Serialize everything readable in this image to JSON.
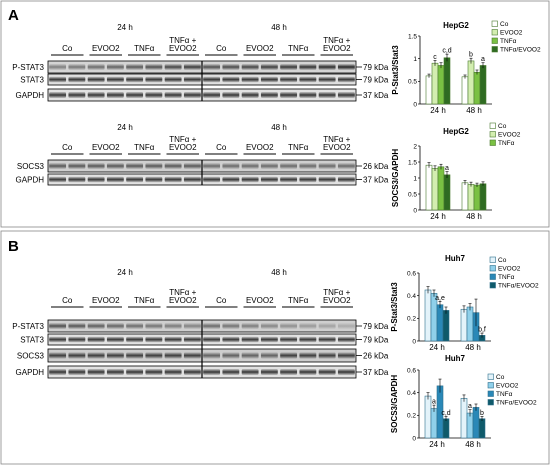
{
  "figure": {
    "panel_a": {
      "letter": "A",
      "blot1": {
        "time_left": "24 h",
        "time_right": "48 h",
        "groups": [
          "Co",
          "EVOO2",
          "TNFα",
          "TNFα +\nEVOO2",
          "Co",
          "EVOO2",
          "TNFα",
          "TNFα +\nEVOO2"
        ],
        "rows": [
          {
            "label": "P-STAT3",
            "kda": "79 kDa"
          },
          {
            "label": "STAT3",
            "kda": "79 kDa"
          },
          {
            "label": "GAPDH",
            "kda": "37 kDa"
          }
        ]
      },
      "blot2": {
        "time_left": "24 h",
        "time_right": "48 h",
        "groups": [
          "Co",
          "EVOO2",
          "TNFα",
          "TNFα +\nEVOO2",
          "Co",
          "EVOO2",
          "TNFα",
          "TNFα +\nEVOO2"
        ],
        "rows": [
          {
            "label": "SOCS3",
            "kda": "26 kDa"
          },
          {
            "label": "GAPDH",
            "kda": "37 kDa"
          }
        ]
      }
    },
    "panel_b": {
      "letter": "B",
      "blot": {
        "time_left": "24 h",
        "time_right": "48 h",
        "groups": [
          "Co",
          "EVOO2",
          "TNFα",
          "TNFα +\nEVOO2",
          "Co",
          "EVOO2",
          "TNFα",
          "TNFα +\nEVOO2"
        ],
        "rows": [
          {
            "label": "P-STAT3",
            "kda": "79 kDa"
          },
          {
            "label": "STAT3",
            "kda": "79 kDa"
          },
          {
            "label": "SOCS3",
            "kda": "26 kDa"
          },
          {
            "label": "GAPDH",
            "kda": "37 kDa"
          }
        ]
      }
    }
  },
  "chart_data": [
    {
      "type": "bar",
      "title": "HepG2",
      "ylabel": "P-Stat3/Stat3",
      "categories": [
        "24 h",
        "48 h"
      ],
      "ylim": [
        0,
        1.5
      ],
      "yticks": [
        "0",
        "0.5",
        "1",
        "1.5"
      ],
      "series": [
        {
          "name": "Co",
          "values": [
            0.62,
            0.6
          ],
          "errors": [
            0.04,
            0.04
          ],
          "color": "#ffffff"
        },
        {
          "name": "EVOO2",
          "values": [
            0.9,
            0.95
          ],
          "errors": [
            0.06,
            0.06
          ],
          "color": "#d3eeb0"
        },
        {
          "name": "TNFα",
          "values": [
            0.85,
            0.7
          ],
          "errors": [
            0.06,
            0.05
          ],
          "color": "#7ac143"
        },
        {
          "name": "TNFα/EVOO2",
          "values": [
            1.02,
            0.85
          ],
          "errors": [
            0.08,
            0.06
          ],
          "color": "#2f6b22"
        }
      ],
      "annotations": [
        {
          "category": 0,
          "series": 1,
          "text": "c"
        },
        {
          "category": 0,
          "series": 3,
          "text": "c,d"
        },
        {
          "category": 1,
          "series": 1,
          "text": "b"
        },
        {
          "category": 1,
          "series": 3,
          "text": "a"
        }
      ]
    },
    {
      "type": "bar",
      "title": "HepG2",
      "ylabel": "SOCS3/GAPDH",
      "categories": [
        "24 h",
        "48 h"
      ],
      "ylim": [
        0,
        2
      ],
      "yticks": [
        "0",
        "0.5",
        "1",
        "1.5",
        "2"
      ],
      "series": [
        {
          "name": "Co",
          "values": [
            1.4,
            0.85
          ],
          "errors": [
            0.08,
            0.07
          ],
          "color": "#ffffff"
        },
        {
          "name": "EVOO2",
          "values": [
            1.3,
            0.8
          ],
          "errors": [
            0.08,
            0.07
          ],
          "color": "#d3eeb0"
        },
        {
          "name": "TNFα",
          "values": [
            1.35,
            0.78
          ],
          "errors": [
            0.08,
            0.06
          ],
          "color": "#7ac143"
        },
        {
          "name": "",
          "values": [
            1.1,
            0.82
          ],
          "errors": [
            0.1,
            0.06
          ],
          "color": "#2f6b22"
        }
      ],
      "annotations": [
        {
          "category": 0,
          "series": 3,
          "text": "a"
        }
      ]
    },
    {
      "type": "bar",
      "title": "Huh7",
      "ylabel": "P-Stat3/Stat3",
      "categories": [
        "24 h",
        "48 h"
      ],
      "ylim": [
        0,
        0.6
      ],
      "yticks": [
        "0",
        "0.2",
        "0.4",
        "0.6"
      ],
      "series": [
        {
          "name": "Co",
          "values": [
            0.45,
            0.28
          ],
          "errors": [
            0.03,
            0.03
          ],
          "color": "#e3f3fa"
        },
        {
          "name": "EVOO2",
          "values": [
            0.42,
            0.3
          ],
          "errors": [
            0.03,
            0.03
          ],
          "color": "#8fd0ea"
        },
        {
          "name": "TNFα",
          "values": [
            0.32,
            0.25
          ],
          "errors": [
            0.03,
            0.12
          ],
          "color": "#2a88b7"
        },
        {
          "name": "TNFα/EVOO2",
          "values": [
            0.27,
            0.05
          ],
          "errors": [
            0.03,
            0.02
          ],
          "color": "#0f5a6a"
        }
      ],
      "annotations": [
        {
          "category": 0,
          "series": 2,
          "text": "a,e"
        },
        {
          "category": 1,
          "series": 3,
          "text": "b,f"
        }
      ]
    },
    {
      "type": "bar",
      "title": "Huh7",
      "ylabel": "SOCS3/GAPDH",
      "categories": [
        "24 h",
        "48 h"
      ],
      "ylim": [
        0,
        0.6
      ],
      "yticks": [
        "0",
        "0.2",
        "0.4",
        "0.6"
      ],
      "series": [
        {
          "name": "Co",
          "values": [
            0.37,
            0.35
          ],
          "errors": [
            0.03,
            0.03
          ],
          "color": "#e3f3fa"
        },
        {
          "name": "EVOO2",
          "values": [
            0.26,
            0.22
          ],
          "errors": [
            0.03,
            0.03
          ],
          "color": "#8fd0ea"
        },
        {
          "name": "TNFα",
          "values": [
            0.46,
            0.27
          ],
          "errors": [
            0.06,
            0.03
          ],
          "color": "#2a88b7"
        },
        {
          "name": "TNFα/EVOO2",
          "values": [
            0.17,
            0.17
          ],
          "errors": [
            0.02,
            0.02
          ],
          "color": "#0f5a6a"
        }
      ],
      "annotations": [
        {
          "category": 0,
          "series": 1,
          "text": "a"
        },
        {
          "category": 0,
          "series": 3,
          "text": "c,d"
        },
        {
          "category": 1,
          "series": 1,
          "text": "a"
        },
        {
          "category": 1,
          "series": 3,
          "text": "b"
        }
      ]
    }
  ]
}
